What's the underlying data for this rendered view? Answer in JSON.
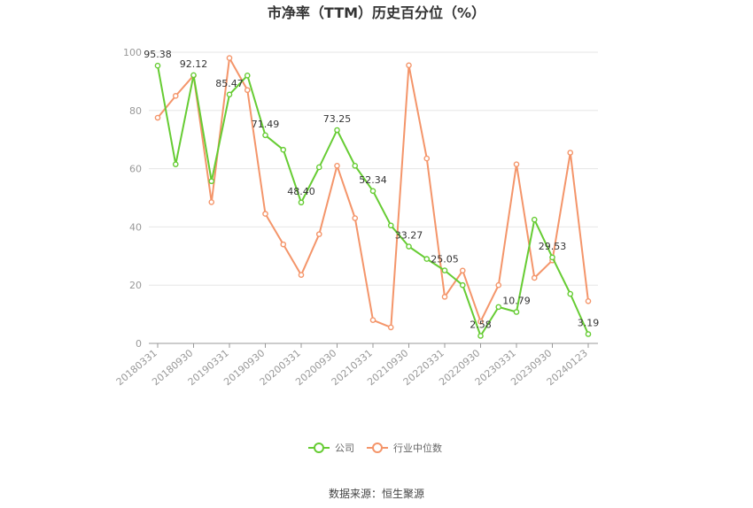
{
  "chart_data": {
    "type": "line",
    "title": "市净率（TTM）历史百分位（%）",
    "xlabel": "",
    "ylabel": "",
    "ylim": [
      0,
      100
    ],
    "yticks": [
      0,
      20,
      40,
      60,
      80,
      100
    ],
    "x_tick_labels": [
      "20180331",
      "20180930",
      "20190331",
      "20190930",
      "20200331",
      "20200930",
      "20210331",
      "20210930",
      "20220331",
      "20220930",
      "20230331",
      "20230930",
      "20240123"
    ],
    "grid": true,
    "legend_position": "bottom",
    "series": [
      {
        "name": "公司",
        "color": "#66cc33",
        "values": [
          95.38,
          61.5,
          92.12,
          55.7,
          85.47,
          92.0,
          71.49,
          66.5,
          48.4,
          60.5,
          73.25,
          61.0,
          52.34,
          40.5,
          33.27,
          29.0,
          25.05,
          20.0,
          2.58,
          12.5,
          10.79,
          42.5,
          29.53,
          17.0,
          3.19
        ],
        "labels": {
          "0": "95.38",
          "2": "92.12",
          "4": "85.47",
          "6": "71.49",
          "8": "48.40",
          "10": "73.25",
          "12": "52.34",
          "14": "33.27",
          "16": "25.05",
          "18": "2.58",
          "20": "10.79",
          "22": "29.53",
          "24": "3.19"
        }
      },
      {
        "name": "行业中位数",
        "color": "#f4956a",
        "values": [
          77.5,
          85.0,
          92.0,
          48.5,
          98.0,
          87.0,
          44.5,
          34.0,
          23.5,
          37.5,
          61.0,
          43.0,
          8.0,
          5.5,
          95.5,
          63.5,
          16.0,
          25.0,
          7.5,
          20.0,
          61.5,
          22.5,
          28.5,
          65.5,
          14.5
        ]
      }
    ]
  },
  "footer": {
    "source": "数据来源：恒生聚源"
  }
}
